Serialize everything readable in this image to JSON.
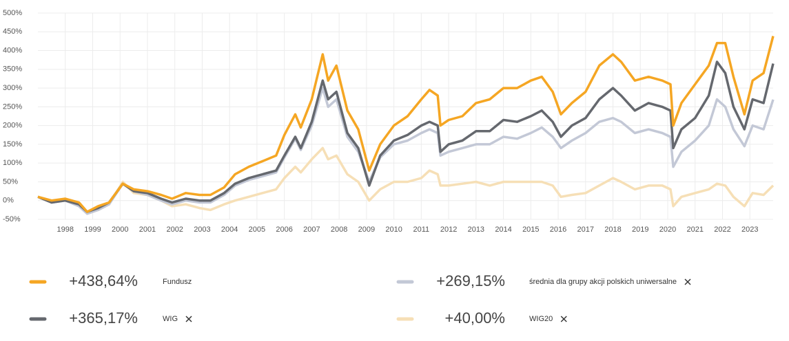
{
  "chart_data": {
    "type": "line",
    "x": [
      1997.0,
      1997.5,
      1998.0,
      1998.5,
      1998.8,
      1999.2,
      1999.6,
      2000.1,
      2000.5,
      2001.0,
      2001.5,
      2001.9,
      2002.4,
      2002.9,
      2003.3,
      2003.8,
      2004.2,
      2004.7,
      2005.2,
      2005.7,
      2006.0,
      2006.4,
      2006.6,
      2007.0,
      2007.4,
      2007.6,
      2007.9,
      2008.3,
      2008.7,
      2009.1,
      2009.5,
      2010.0,
      2010.5,
      2011.0,
      2011.3,
      2011.6,
      2011.7,
      2012.0,
      2012.5,
      2013.0,
      2013.5,
      2014.0,
      2014.5,
      2015.0,
      2015.4,
      2015.8,
      2016.1,
      2016.5,
      2017.0,
      2017.5,
      2018.0,
      2018.3,
      2018.8,
      2019.3,
      2019.8,
      2020.1,
      2020.2,
      2020.5,
      2021.0,
      2021.5,
      2021.8,
      2022.1,
      2022.4,
      2022.8,
      2023.1,
      2023.5,
      2023.85
    ],
    "xlim": [
      1997,
      2023.85
    ],
    "xticks": [
      1998,
      1999,
      2000,
      2001,
      2002,
      2003,
      2004,
      2005,
      2006,
      2007,
      2008,
      2009,
      2010,
      2011,
      2012,
      2013,
      2014,
      2015,
      2016,
      2017,
      2018,
      2019,
      2020,
      2021,
      2022,
      2023
    ],
    "ylim": [
      -50,
      500
    ],
    "yticks": [
      {
        "value": -50,
        "label": "-50%"
      },
      {
        "value": 0,
        "label": "0%"
      },
      {
        "value": 50,
        "label": "50%"
      },
      {
        "value": 100,
        "label": "100%"
      },
      {
        "value": 150,
        "label": "150%"
      },
      {
        "value": 200,
        "label": "200%"
      },
      {
        "value": 250,
        "label": "250%"
      },
      {
        "value": 300,
        "label": "300%"
      },
      {
        "value": 350,
        "label": "350%"
      },
      {
        "value": 400,
        "label": "400%"
      },
      {
        "value": 450,
        "label": "450%"
      },
      {
        "value": 500,
        "label": "500%"
      }
    ],
    "grid": true,
    "series": [
      {
        "name": "WIG20",
        "color": "#f6dfb6",
        "value_label": "+40,00%",
        "removable": true,
        "values": [
          10,
          -5,
          5,
          -10,
          -35,
          -25,
          -10,
          50,
          20,
          15,
          0,
          -15,
          -10,
          -20,
          -25,
          -10,
          0,
          10,
          20,
          30,
          60,
          90,
          75,
          110,
          140,
          110,
          120,
          70,
          50,
          0,
          30,
          50,
          50,
          60,
          80,
          70,
          40,
          40,
          45,
          50,
          40,
          50,
          50,
          50,
          50,
          40,
          10,
          15,
          20,
          40,
          60,
          50,
          30,
          40,
          40,
          30,
          -15,
          10,
          20,
          30,
          45,
          40,
          10,
          -15,
          20,
          15,
          40
        ]
      },
      {
        "name": "średnia dla grupy akcji polskich uniwersalne",
        "color": "#c3c8d6",
        "value_label": "+269,15%",
        "removable": true,
        "values": [
          10,
          -5,
          0,
          -15,
          -35,
          -25,
          -10,
          45,
          25,
          15,
          0,
          -10,
          0,
          -5,
          -5,
          15,
          40,
          55,
          65,
          75,
          115,
          165,
          135,
          200,
          300,
          250,
          270,
          170,
          130,
          50,
          115,
          150,
          160,
          180,
          190,
          180,
          120,
          130,
          140,
          150,
          150,
          170,
          165,
          180,
          195,
          170,
          140,
          160,
          180,
          210,
          220,
          210,
          180,
          190,
          180,
          170,
          90,
          130,
          160,
          200,
          270,
          250,
          190,
          145,
          200,
          190,
          269.15
        ]
      },
      {
        "name": "WIG",
        "color": "#65686e",
        "value_label": "+365,17%",
        "removable": true,
        "values": [
          10,
          -5,
          0,
          -10,
          -30,
          -20,
          -5,
          45,
          25,
          20,
          5,
          -5,
          5,
          0,
          0,
          20,
          45,
          60,
          70,
          80,
          120,
          170,
          140,
          210,
          320,
          270,
          290,
          180,
          140,
          40,
          120,
          160,
          175,
          200,
          210,
          200,
          130,
          150,
          160,
          185,
          185,
          215,
          210,
          225,
          240,
          210,
          170,
          200,
          220,
          270,
          300,
          280,
          240,
          260,
          250,
          240,
          140,
          190,
          220,
          280,
          370,
          340,
          250,
          190,
          270,
          260,
          365.17
        ]
      },
      {
        "name": "Fundusz",
        "color": "#f5a623",
        "value_label": "+438,64%",
        "removable": false,
        "values": [
          10,
          0,
          5,
          -5,
          -30,
          -15,
          -5,
          45,
          30,
          25,
          15,
          5,
          20,
          15,
          15,
          35,
          70,
          90,
          105,
          120,
          175,
          230,
          195,
          270,
          390,
          320,
          360,
          240,
          190,
          80,
          150,
          200,
          225,
          270,
          295,
          280,
          200,
          215,
          225,
          260,
          270,
          300,
          300,
          320,
          330,
          290,
          230,
          260,
          290,
          360,
          390,
          370,
          320,
          330,
          320,
          310,
          200,
          260,
          310,
          360,
          420,
          420,
          330,
          230,
          320,
          340,
          438.64
        ]
      }
    ],
    "legend_order": [
      3,
      1,
      2,
      0
    ]
  }
}
